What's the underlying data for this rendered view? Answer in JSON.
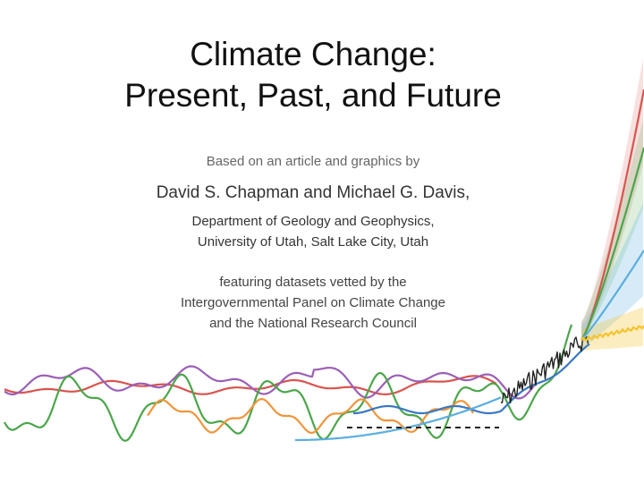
{
  "slide": {
    "title_line1": "Climate Change:",
    "title_line2": "Present, Past, and Future",
    "intro": "Based on an article and graphics by",
    "authors": "David S. Chapman and Michael G. Davis,",
    "dept_line1": "Department of Geology and Geophysics,",
    "dept_line2": "University of Utah, Salt Lake City, Utah",
    "feature_line1": "featuring datasets vetted by the",
    "feature_line2": "Intergovernmental Panel on Climate Change",
    "feature_line3": "and the National Research Council"
  },
  "colors": {
    "red": "#d9534f",
    "green": "#4aa64a",
    "purple": "#9b5fb5",
    "orange": "#f0953a",
    "blue": "#3a78c2",
    "lightblue": "#5aaee0",
    "black": "#222222",
    "yellow": "#f4c430"
  }
}
